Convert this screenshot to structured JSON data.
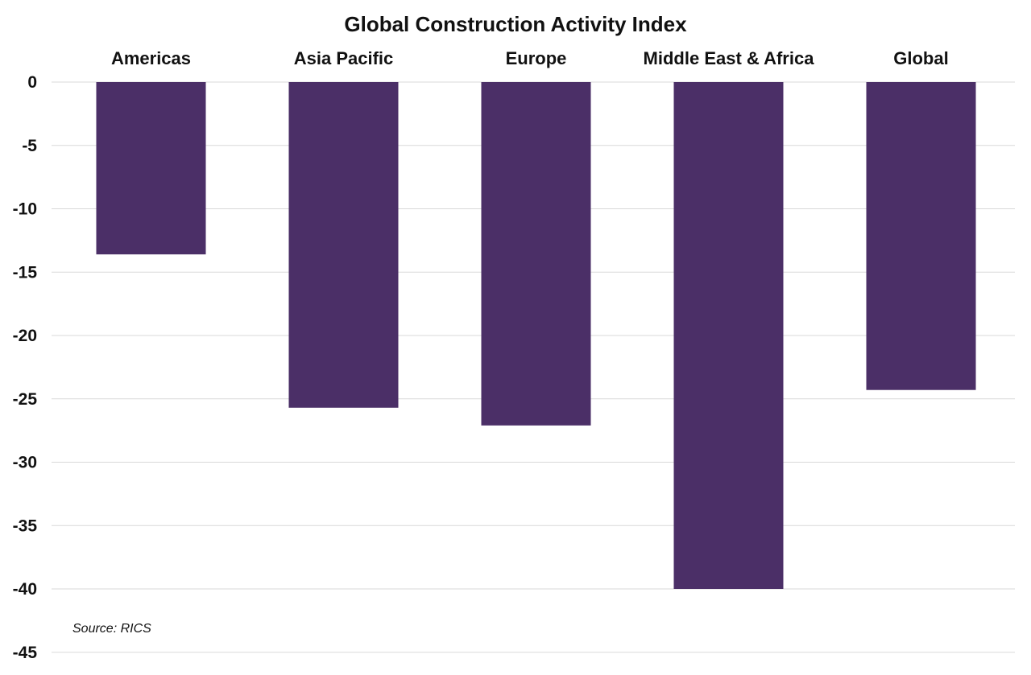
{
  "chart_data": {
    "type": "bar",
    "title": "Global Construction Activity Index",
    "categories": [
      "Americas",
      "Asia Pacific",
      "Europe",
      "Middle East & Africa",
      "Global"
    ],
    "values": [
      -13.6,
      -25.7,
      -27.1,
      -40.0,
      -24.3
    ],
    "ylim": [
      -45,
      0
    ],
    "yticks": [
      "0",
      "-5",
      "-10",
      "-15",
      "-20",
      "-25",
      "-30",
      "-35",
      "-40",
      "-45"
    ],
    "ytick_values": [
      0,
      -5,
      -10,
      -15,
      -20,
      -25,
      -30,
      -35,
      -40,
      -45
    ],
    "xlabel": "",
    "ylabel": "",
    "grid": true,
    "category_labels_position": "top",
    "bar_color": "#4b2f67",
    "grid_color": "#d9d9d9"
  },
  "source_note": "Source: RICS"
}
